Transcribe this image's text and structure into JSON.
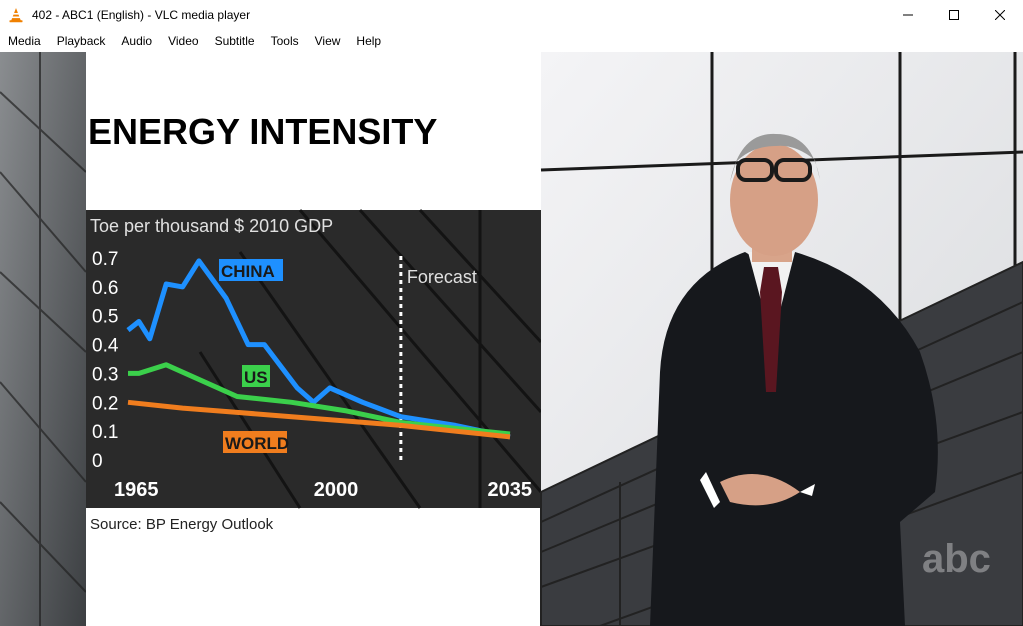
{
  "window": {
    "title": "402 - ABC1 (English) - VLC media player"
  },
  "menu": [
    "Media",
    "Playback",
    "Audio",
    "Video",
    "Subtitle",
    "Tools",
    "View",
    "Help"
  ],
  "video": {
    "headline": "ENERGY INTENSITY",
    "subtitle": "Toe per thousand $ 2010 GDP",
    "source": "Source: BP Energy Outlook",
    "watermark": "abc",
    "chart_data": {
      "type": "line",
      "title": "ENERGY INTENSITY",
      "ylabel": "Toe per thousand $ 2010 GDP",
      "ylim": [
        0,
        0.7
      ],
      "y_ticks": [
        "0.7",
        "0.6",
        "0.5",
        "0.4",
        "0.3",
        "0.2",
        "0.1",
        "0"
      ],
      "x_ticks": [
        "1965",
        "2000",
        "2035"
      ],
      "forecast_label": "Forecast",
      "forecast_start": 2015,
      "series": [
        {
          "name": "CHINA",
          "color": "#1e90ff",
          "points": [
            [
              1965,
              0.45
            ],
            [
              1967,
              0.48
            ],
            [
              1969,
              0.42
            ],
            [
              1972,
              0.61
            ],
            [
              1975,
              0.6
            ],
            [
              1978,
              0.69
            ],
            [
              1983,
              0.56
            ],
            [
              1987,
              0.4
            ],
            [
              1990,
              0.4
            ],
            [
              1996,
              0.25
            ],
            [
              1999,
              0.2
            ],
            [
              2002,
              0.25
            ],
            [
              2008,
              0.2
            ],
            [
              2015,
              0.15
            ],
            [
              2025,
              0.12
            ],
            [
              2035,
              0.08
            ]
          ]
        },
        {
          "name": "US",
          "color": "#3bd04b",
          "points": [
            [
              1965,
              0.3
            ],
            [
              1967,
              0.3
            ],
            [
              1972,
              0.33
            ],
            [
              1985,
              0.22
            ],
            [
              1995,
              0.2
            ],
            [
              2005,
              0.17
            ],
            [
              2015,
              0.13
            ],
            [
              2025,
              0.11
            ],
            [
              2035,
              0.09
            ]
          ]
        },
        {
          "name": "WORLD",
          "color": "#f07d1e",
          "points": [
            [
              1965,
              0.2
            ],
            [
              1975,
              0.18
            ],
            [
              1985,
              0.165
            ],
            [
              1995,
              0.15
            ],
            [
              2005,
              0.135
            ],
            [
              2015,
              0.12
            ],
            [
              2025,
              0.1
            ],
            [
              2035,
              0.08
            ]
          ]
        }
      ]
    }
  }
}
